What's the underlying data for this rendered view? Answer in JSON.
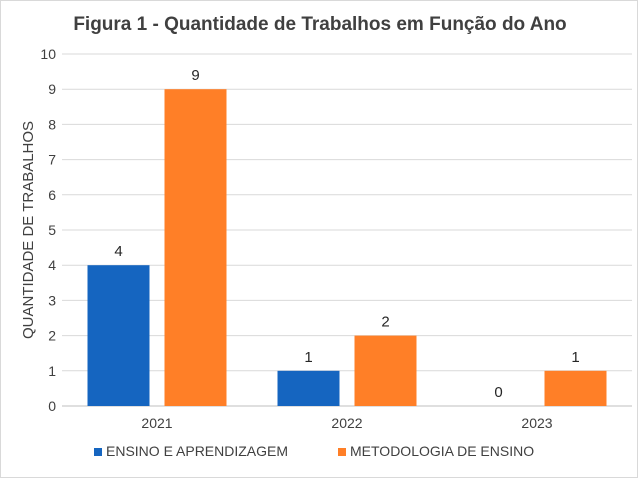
{
  "chart_data": {
    "type": "bar",
    "title": "Figura 1 - Quantidade de Trabalhos em Função do Ano",
    "xlabel": "",
    "ylabel": "QUANTIDADE DE TRABALHOS",
    "categories": [
      "2021",
      "2022",
      "2023"
    ],
    "series": [
      {
        "name": "ENSINO E APRENDIZAGEM",
        "values": [
          4,
          1,
          0
        ],
        "color": "#1565c0"
      },
      {
        "name": "METODOLOGIA DE ENSINO",
        "values": [
          9,
          2,
          1
        ],
        "color": "#ff7f27"
      }
    ],
    "ylim": [
      0,
      10
    ],
    "yticks": [
      0,
      1,
      2,
      3,
      4,
      5,
      6,
      7,
      8,
      9,
      10
    ],
    "grid": true,
    "legend": "bottom",
    "data_labels": true
  }
}
